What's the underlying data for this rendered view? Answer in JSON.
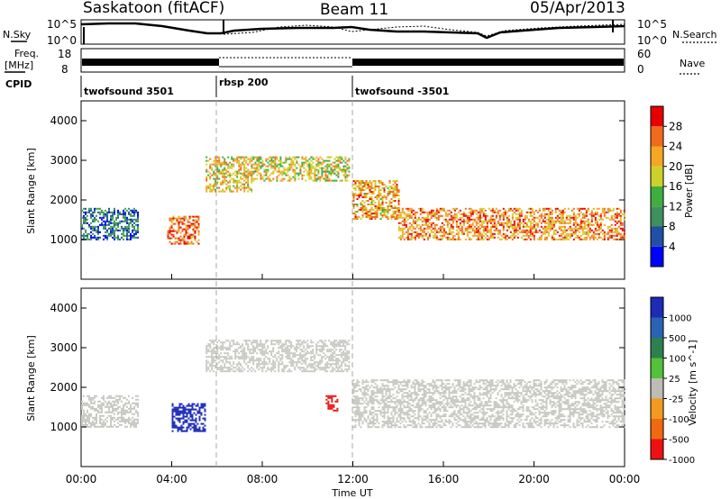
{
  "header": {
    "station": "Saskatoon (fitACF)",
    "beam": "Beam 11",
    "date": "05/Apr/2013"
  },
  "noise_panel": {
    "left_label": "N.Sky",
    "left_top_tick": "10^5",
    "left_bottom_tick": "10^0",
    "right_top_tick": "10^5",
    "right_bottom_tick": "10^0",
    "right_label": "N.Search"
  },
  "freq_panel": {
    "left_label_1": "Freq.",
    "left_label_2": "[MHz]",
    "left_top_tick": "18",
    "left_bottom_tick": "8",
    "right_top_tick": "60",
    "right_bottom_tick": "0",
    "right_label": "Nave"
  },
  "cpid": {
    "label": "CPID",
    "segments": [
      "twofsound 3501",
      "rbsp 200",
      "twofsound -3501"
    ]
  },
  "colors": {
    "scale": [
      "#0000ff",
      "#224fa6",
      "#3f8f5f",
      "#3fae3f",
      "#ccd22a",
      "#f5a623",
      "#f06a1c",
      "#e60000"
    ],
    "velocity": [
      "#1d2bb6",
      "#2a63b5",
      "#2f7f4f",
      "#53c13a",
      "#bdbdb6",
      "#f29a1f",
      "#ef6a10",
      "#ee1111"
    ],
    "ground": "#c8c8c2"
  },
  "chart_data": [
    {
      "type": "heatmap",
      "title": "Power",
      "xlabel": "",
      "ylabel": "Slant Range [km]",
      "x_ticks": [
        "00:00",
        "04:00",
        "08:00",
        "12:00",
        "16:00",
        "20:00",
        "00:00"
      ],
      "y_ticks": [
        "1000",
        "2000",
        "3000",
        "4000"
      ],
      "ylim": [
        0,
        4500
      ],
      "xlim_hours": [
        0,
        24
      ],
      "colorbar": {
        "label": "Power [dB]",
        "ticks": [
          "4",
          "8",
          "12",
          "16",
          "20",
          "24",
          "28"
        ],
        "range": [
          0,
          32
        ]
      },
      "echo_bands": [
        {
          "t_start": 0.0,
          "t_end": 2.5,
          "range_km": [
            1000,
            1800
          ],
          "power_db": 8
        },
        {
          "t_start": 3.8,
          "t_end": 5.2,
          "range_km": [
            900,
            1600
          ],
          "power_db": 26
        },
        {
          "t_start": 5.5,
          "t_end": 7.5,
          "range_km": [
            2200,
            3100
          ],
          "power_db": 20
        },
        {
          "t_start": 7.5,
          "t_end": 11.8,
          "range_km": [
            2500,
            3100
          ],
          "power_db": 18
        },
        {
          "t_start": 12.0,
          "t_end": 14.0,
          "range_km": [
            1500,
            2500
          ],
          "power_db": 22
        },
        {
          "t_start": 14.0,
          "t_end": 24.0,
          "range_km": [
            1000,
            1800
          ],
          "power_db": 24
        }
      ]
    },
    {
      "type": "heatmap",
      "title": "Velocity",
      "xlabel": "Time UT",
      "ylabel": "Slant Range [km]",
      "x_ticks": [
        "00:00",
        "04:00",
        "08:00",
        "12:00",
        "16:00",
        "20:00",
        "00:00"
      ],
      "y_ticks": [
        "1000",
        "2000",
        "3000",
        "4000"
      ],
      "ylim": [
        0,
        4500
      ],
      "xlim_hours": [
        0,
        24
      ],
      "colorbar": {
        "label": "Velocity [m s^-1]",
        "ticks": [
          "1000",
          "500",
          "100",
          "25",
          "-25",
          "-100",
          "-500",
          "-1000"
        ]
      },
      "echo_bands": [
        {
          "t_start": 0.0,
          "t_end": 2.5,
          "range_km": [
            1000,
            1800
          ],
          "velocity": "ground"
        },
        {
          "t_start": 4.0,
          "t_end": 5.5,
          "range_km": [
            900,
            1600
          ],
          "velocity": 500
        },
        {
          "t_start": 5.5,
          "t_end": 11.8,
          "range_km": [
            2400,
            3200
          ],
          "velocity": "ground"
        },
        {
          "t_start": 10.8,
          "t_end": 11.3,
          "range_km": [
            1400,
            1800
          ],
          "velocity": -500
        },
        {
          "t_start": 12.0,
          "t_end": 24.0,
          "range_km": [
            1000,
            2200
          ],
          "velocity": "ground"
        }
      ]
    }
  ]
}
